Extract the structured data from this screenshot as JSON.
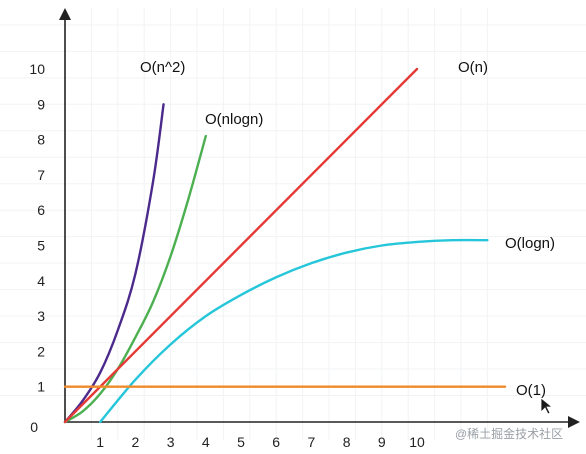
{
  "watermark": "@稀土掘金技术社区",
  "chart_data": {
    "type": "line",
    "x_ticks": [
      "1",
      "2",
      "3",
      "4",
      "5",
      "6",
      "7",
      "8",
      "9",
      "10"
    ],
    "y_ticks": [
      "0",
      "1",
      "2",
      "3",
      "4",
      "5",
      "6",
      "7",
      "8",
      "9",
      "10"
    ],
    "xlim": [
      0,
      12.5
    ],
    "ylim": [
      0,
      11.5
    ],
    "grid": true,
    "series": [
      {
        "name": "O(n^2)",
        "color": "#4b2a8c",
        "x": [
          0,
          0.5,
          1,
          1.5,
          2,
          2.5,
          2.8
        ],
        "y": [
          0,
          0.6,
          1.4,
          2.6,
          4.2,
          6.8,
          9.0
        ]
      },
      {
        "name": "O(nlogn)",
        "color": "#4caf50",
        "x": [
          0,
          0.5,
          1,
          1.5,
          2,
          2.5,
          3,
          3.5,
          4
        ],
        "y": [
          0,
          0.3,
          0.8,
          1.5,
          2.4,
          3.4,
          4.7,
          6.3,
          8.1
        ]
      },
      {
        "name": "O(n)",
        "color": "#e53935",
        "x": [
          0,
          10
        ],
        "y": [
          0,
          10
        ]
      },
      {
        "name": "O(logn)",
        "color": "#26c6da",
        "x": [
          1,
          2,
          3,
          4,
          5,
          6,
          7,
          8,
          9,
          10,
          11,
          12
        ],
        "y": [
          0,
          1.2,
          2.2,
          3.0,
          3.6,
          4.1,
          4.5,
          4.8,
          5.0,
          5.1,
          5.15,
          5.15
        ]
      },
      {
        "name": "O(1)",
        "color": "#ef8a2a",
        "x": [
          0,
          12.5
        ],
        "y": [
          1,
          1
        ]
      }
    ]
  }
}
